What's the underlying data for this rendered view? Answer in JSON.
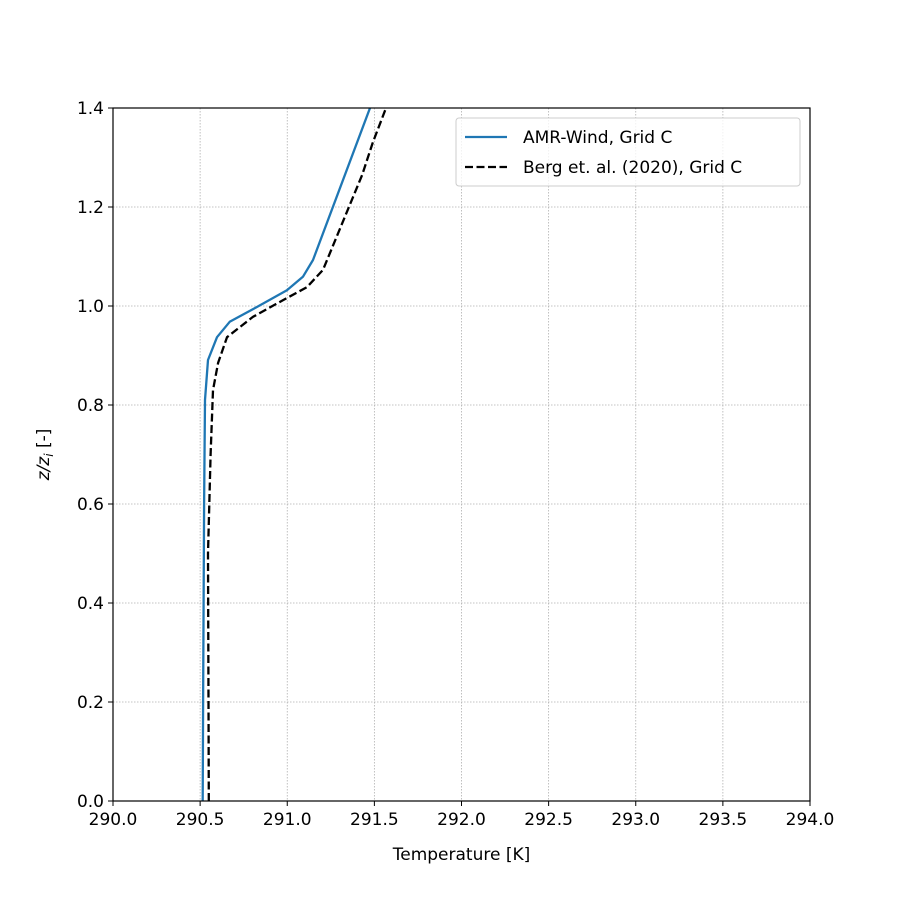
{
  "chart_data": {
    "type": "line",
    "title": "",
    "xlabel": "Temperature [K]",
    "ylabel": {
      "main": "z/z",
      "sub": "i",
      "suffix": " [-]"
    },
    "xlim": [
      290.0,
      294.0
    ],
    "ylim": [
      0.0,
      1.4
    ],
    "grid": true,
    "legend_placement": "top-right",
    "xticks": [
      "290.0",
      "290.5",
      "291.0",
      "291.5",
      "292.0",
      "292.5",
      "293.0",
      "293.5",
      "294.0"
    ],
    "yticks": [
      "0.0",
      "0.2",
      "0.4",
      "0.6",
      "0.8",
      "1.0",
      "1.2",
      "1.4"
    ],
    "series": [
      {
        "name": "AMR-Wind, Grid C",
        "color": "#1f77b4",
        "style": "solid",
        "x": [
          290.515,
          290.517,
          290.52,
          290.523,
          290.528,
          290.545,
          290.597,
          290.67,
          290.826,
          290.998,
          291.09,
          291.148,
          291.475
        ],
        "y": [
          0.0,
          0.2,
          0.4,
          0.6,
          0.81,
          0.891,
          0.937,
          0.968,
          0.998,
          1.032,
          1.059,
          1.093,
          1.4
        ]
      },
      {
        "name": "Berg et. al. (2020), Grid C",
        "color": "#000000",
        "style": "dashed",
        "x": [
          290.55,
          290.548,
          290.545,
          290.56,
          290.574,
          290.603,
          290.654,
          290.803,
          290.976,
          291.113,
          291.205,
          291.43,
          291.49,
          291.567
        ],
        "y": [
          0.0,
          0.2,
          0.5,
          0.7,
          0.83,
          0.885,
          0.937,
          0.978,
          1.012,
          1.038,
          1.073,
          1.265,
          1.329,
          1.4
        ]
      }
    ]
  }
}
